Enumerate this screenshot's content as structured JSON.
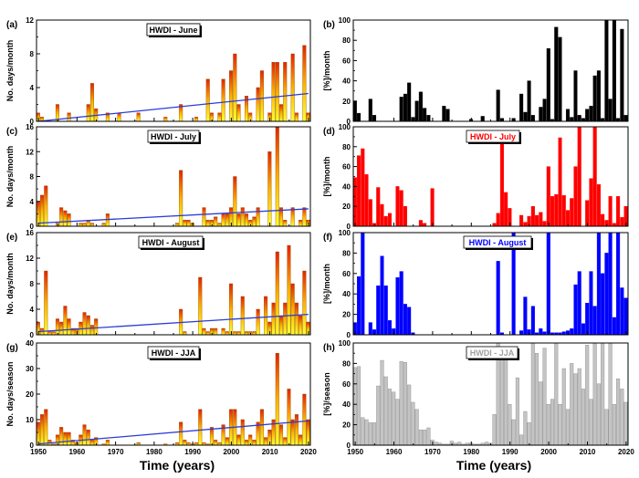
{
  "figure": {
    "xlabel": "Time (years)",
    "x_ticks": [
      "1950",
      "1960",
      "1970",
      "1980",
      "1990",
      "2000",
      "2010",
      "2020"
    ]
  },
  "chart_data": [
    {
      "id": "a",
      "panel_label": "(a)",
      "type": "bar",
      "title": "HWDI - June",
      "title_color": "#000000",
      "ylabel": "No. days/month",
      "ylim": [
        0,
        12
      ],
      "yticks": [
        "0",
        "4",
        "8",
        "12"
      ],
      "style": "gradient",
      "trend": [
        0,
        3.3
      ],
      "x": [
        1950,
        1951,
        1955,
        1958,
        1963,
        1964,
        1965,
        1968,
        1971,
        1976,
        1983,
        1987,
        1991,
        1994,
        1995,
        1997,
        1998,
        2000,
        2001,
        2002,
        2004,
        2005,
        2007,
        2008,
        2010,
        2011,
        2012,
        2013,
        2014,
        2016,
        2017,
        2019,
        2020
      ],
      "values": [
        1,
        0.5,
        2,
        1,
        2,
        4.5,
        1.5,
        1,
        1,
        1,
        0.5,
        2,
        0.5,
        5,
        1,
        1,
        5,
        6,
        8,
        2,
        3,
        1,
        4,
        6,
        1,
        7,
        7,
        2,
        7,
        8,
        1,
        9,
        1
      ]
    },
    {
      "id": "b",
      "panel_label": "(b)",
      "type": "bar",
      "title": "HWDI - June",
      "title_color": "#000000",
      "ylabel": "[%]/month",
      "ylim": [
        0,
        100
      ],
      "yticks": [
        "0",
        "20",
        "40",
        "60",
        "80",
        "100"
      ],
      "style": "solid",
      "color": "#000000",
      "x": [
        1950,
        1951,
        1954,
        1955,
        1962,
        1963,
        1964,
        1965,
        1966,
        1967,
        1968,
        1969,
        1973,
        1974,
        1980,
        1983,
        1987,
        1988,
        1991,
        1993,
        1994,
        1995,
        1996,
        1998,
        1999,
        2000,
        2001,
        2002,
        2003,
        2005,
        2006,
        2007,
        2008,
        2009,
        2010,
        2011,
        2012,
        2013,
        2014,
        2015,
        2016,
        2017,
        2018,
        2019,
        2020
      ],
      "values": [
        20,
        8,
        22,
        6,
        24,
        27,
        38,
        4,
        20,
        29,
        13,
        6,
        15,
        12,
        2,
        5,
        31,
        3,
        3,
        27,
        9,
        40,
        6,
        14,
        22,
        72,
        2,
        93,
        83,
        12,
        4,
        50,
        6,
        3,
        12,
        15,
        45,
        50,
        3,
        100,
        22,
        100,
        3,
        91,
        6
      ]
    },
    {
      "id": "c",
      "panel_label": "(c)",
      "type": "bar",
      "title": "HWDI - July",
      "title_color": "#000000",
      "ylabel": "No. days/month",
      "ylim": [
        0,
        16
      ],
      "yticks": [
        "0",
        "4",
        "8",
        "12",
        "16"
      ],
      "style": "gradient",
      "trend": [
        0.5,
        2.8
      ],
      "x": [
        1950,
        1951,
        1952,
        1955,
        1956,
        1957,
        1958,
        1961,
        1962,
        1963,
        1964,
        1967,
        1968,
        1986,
        1987,
        1988,
        1989,
        1990,
        1993,
        1994,
        1995,
        1996,
        1997,
        1998,
        1999,
        2000,
        2001,
        2002,
        2003,
        2004,
        2005,
        2006,
        2007,
        2010,
        2012,
        2013,
        2014,
        2016,
        2018,
        2019,
        2020
      ],
      "values": [
        4,
        5,
        6.5,
        0.5,
        3,
        2.5,
        2,
        0.5,
        0.5,
        1,
        0.5,
        0.5,
        2,
        0.5,
        9,
        1,
        1,
        0.5,
        3,
        1,
        1,
        1.5,
        0.5,
        2,
        2,
        3,
        8,
        2,
        3,
        2,
        1,
        1.5,
        3,
        12,
        16,
        3,
        1,
        3,
        1,
        3,
        1
      ]
    },
    {
      "id": "d",
      "panel_label": "(d)",
      "type": "bar",
      "title": "HWDI - July",
      "title_color": "#ff0000",
      "ylabel": "[%]/month",
      "ylim": [
        0,
        100
      ],
      "yticks": [
        "0",
        "20",
        "40",
        "60",
        "80",
        "100"
      ],
      "style": "solid",
      "color": "#ff0000",
      "x": [
        1950,
        1951,
        1952,
        1953,
        1954,
        1955,
        1956,
        1957,
        1958,
        1959,
        1961,
        1962,
        1963,
        1967,
        1968,
        1970,
        1986,
        1987,
        1988,
        1989,
        1990,
        1993,
        1994,
        1995,
        1996,
        1997,
        1998,
        1999,
        2000,
        2001,
        2002,
        2003,
        2004,
        2005,
        2006,
        2007,
        2008,
        2010,
        2011,
        2012,
        2013,
        2014,
        2015,
        2016,
        2017,
        2018,
        2019,
        2020
      ],
      "values": [
        49,
        71,
        78,
        52,
        27,
        3,
        39,
        22,
        10,
        13,
        40,
        36,
        20,
        6,
        3,
        38,
        3,
        13,
        86,
        34,
        18,
        11,
        4,
        10,
        20,
        11,
        14,
        5,
        60,
        30,
        32,
        89,
        31,
        16,
        28,
        60,
        100,
        26,
        48,
        100,
        42,
        12,
        6,
        30,
        3,
        30,
        9,
        20
      ]
    },
    {
      "id": "e",
      "panel_label": "(e)",
      "type": "bar",
      "title": "HWDI - August",
      "title_color": "#000000",
      "ylabel": "No. days/month",
      "ylim": [
        0,
        16
      ],
      "yticks": [
        "0",
        "4",
        "8",
        "12",
        "16"
      ],
      "style": "gradient",
      "trend": [
        0.5,
        3.2
      ],
      "x": [
        1950,
        1951,
        1952,
        1953,
        1954,
        1955,
        1956,
        1957,
        1958,
        1959,
        1960,
        1961,
        1962,
        1963,
        1964,
        1965,
        1987,
        1988,
        1992,
        1993,
        1994,
        1995,
        1996,
        1998,
        1999,
        2000,
        2001,
        2002,
        2003,
        2004,
        2005,
        2006,
        2007,
        2009,
        2010,
        2011,
        2012,
        2013,
        2014,
        2015,
        2016,
        2017,
        2018,
        2019,
        2020
      ],
      "values": [
        2,
        1,
        10,
        0.5,
        0.5,
        2.5,
        2,
        4.5,
        2.5,
        1,
        1,
        2,
        3.5,
        3,
        1.5,
        2.5,
        4,
        0.5,
        9,
        1,
        0.5,
        1,
        1,
        1,
        0.5,
        8,
        0.5,
        0.5,
        6,
        0.5,
        0.5,
        0.5,
        4,
        6,
        2,
        5,
        13,
        3,
        5,
        14,
        8,
        5,
        3,
        10,
        2
      ]
    },
    {
      "id": "f",
      "panel_label": "(f)",
      "type": "bar",
      "title": "HWDI - August",
      "title_color": "#0000ff",
      "ylabel": "[%]/month",
      "ylim": [
        0,
        100
      ],
      "yticks": [
        "0",
        "20",
        "40",
        "60",
        "80",
        "100"
      ],
      "style": "solid",
      "color": "#0000ff",
      "x": [
        1950,
        1951,
        1952,
        1954,
        1955,
        1956,
        1957,
        1958,
        1959,
        1960,
        1961,
        1962,
        1963,
        1964,
        1965,
        1987,
        1988,
        1991,
        1993,
        1994,
        1995,
        1996,
        1997,
        1998,
        1999,
        2000,
        2001,
        2002,
        2003,
        2004,
        2005,
        2006,
        2007,
        2008,
        2009,
        2010,
        2011,
        2012,
        2013,
        2014,
        2015,
        2016,
        2017,
        2018,
        2019,
        2020
      ],
      "values": [
        12,
        57,
        100,
        12,
        5,
        48,
        77,
        48,
        14,
        6,
        56,
        62,
        30,
        27,
        2,
        72,
        2,
        100,
        4,
        37,
        5,
        28,
        2,
        6,
        3,
        100,
        2,
        2,
        2,
        3,
        4,
        6,
        49,
        62,
        11,
        31,
        62,
        28,
        100,
        60,
        80,
        100,
        17,
        100,
        46,
        36
      ]
    },
    {
      "id": "g",
      "panel_label": "(g)",
      "type": "bar",
      "title": "HWDI - JJA",
      "title_color": "#000000",
      "ylabel": "No. days/season",
      "ylim": [
        0,
        40
      ],
      "yticks": [
        "0",
        "10",
        "20",
        "30",
        "40"
      ],
      "style": "gradient",
      "trend": [
        0.5,
        9.5
      ],
      "x": [
        1950,
        1951,
        1952,
        1953,
        1954,
        1955,
        1956,
        1957,
        1958,
        1959,
        1960,
        1961,
        1962,
        1963,
        1964,
        1965,
        1967,
        1968,
        1976,
        1983,
        1986,
        1987,
        1988,
        1989,
        1990,
        1991,
        1992,
        1993,
        1994,
        1995,
        1996,
        1997,
        1998,
        1999,
        2000,
        2001,
        2002,
        2003,
        2004,
        2005,
        2006,
        2007,
        2008,
        2009,
        2010,
        2011,
        2012,
        2013,
        2014,
        2015,
        2016,
        2017,
        2018,
        2019,
        2020
      ],
      "values": [
        9,
        12,
        14,
        2,
        0.5,
        4,
        7,
        5,
        5,
        2,
        1,
        4,
        8,
        6,
        2,
        3,
        0.5,
        2,
        1,
        0.5,
        1,
        9,
        2,
        1,
        0.5,
        1,
        14,
        1,
        0.5,
        7,
        2,
        1,
        8,
        3,
        14,
        14,
        4,
        10,
        2,
        4,
        2,
        9,
        14,
        3,
        6,
        10,
        36,
        8,
        3,
        22,
        10,
        12,
        4,
        20,
        10
      ]
    },
    {
      "id": "h",
      "panel_label": "(h)",
      "type": "bar",
      "title": "HWDI - JJA",
      "title_color": "#a0a0a0",
      "ylabel": "[%]/season",
      "ylim": [
        0,
        100
      ],
      "yticks": [
        "0",
        "20",
        "40",
        "60",
        "80",
        "100"
      ],
      "style": "solid",
      "color": "#c4c4c4",
      "x": [
        1950,
        1951,
        1952,
        1953,
        1954,
        1955,
        1956,
        1957,
        1958,
        1959,
        1960,
        1961,
        1962,
        1963,
        1964,
        1965,
        1966,
        1967,
        1968,
        1969,
        1970,
        1971,
        1972,
        1973,
        1974,
        1975,
        1976,
        1977,
        1978,
        1979,
        1980,
        1981,
        1982,
        1983,
        1984,
        1985,
        1986,
        1987,
        1988,
        1989,
        1990,
        1991,
        1992,
        1993,
        1994,
        1995,
        1996,
        1997,
        1998,
        1999,
        2000,
        2001,
        2002,
        2003,
        2004,
        2005,
        2006,
        2007,
        2008,
        2009,
        2010,
        2011,
        2012,
        2013,
        2014,
        2015,
        2016,
        2017,
        2018,
        2019,
        2020
      ],
      "values": [
        76,
        77,
        27,
        25,
        22,
        22,
        58,
        83,
        67,
        55,
        52,
        45,
        82,
        81,
        59,
        42,
        35,
        15,
        15,
        17,
        5,
        3,
        2,
        1,
        1,
        4,
        2,
        3,
        1,
        2,
        2,
        1,
        1,
        2,
        3,
        2,
        30,
        100,
        88,
        95,
        40,
        25,
        66,
        10,
        33,
        22,
        100,
        90,
        62,
        95,
        40,
        45,
        100,
        40,
        75,
        35,
        80,
        70,
        75,
        55,
        98,
        45,
        100,
        60,
        100,
        35,
        100,
        40,
        65,
        55,
        42
      ]
    }
  ]
}
